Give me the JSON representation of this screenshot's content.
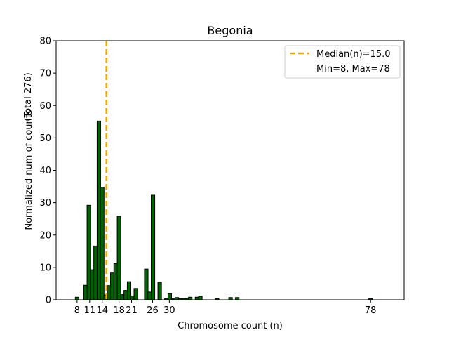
{
  "chart_data": {
    "type": "bar",
    "title": "Begonia",
    "xlabel": "Chromosome count (n)",
    "ylabel": "Normalized num of counts",
    "ylabel_secondary": "(Total 276)",
    "xlim": [
      3,
      86
    ],
    "ylim": [
      0,
      80
    ],
    "yticks": [
      0,
      10,
      20,
      30,
      40,
      50,
      60,
      70,
      80
    ],
    "xticks": [
      8,
      11,
      14,
      18,
      21,
      26,
      30,
      78
    ],
    "bar_color": "#006400",
    "bar_edge_color": "#000000",
    "bar_width": 0.85,
    "bars": [
      {
        "x": 8,
        "y": 0.8
      },
      {
        "x": 10,
        "y": 4.5
      },
      {
        "x": 10.8,
        "y": 29.2
      },
      {
        "x": 11.6,
        "y": 9.3
      },
      {
        "x": 12.4,
        "y": 16.6
      },
      {
        "x": 13.2,
        "y": 55.2
      },
      {
        "x": 14,
        "y": 34.8
      },
      {
        "x": 14.8,
        "y": 1.5
      },
      {
        "x": 15.6,
        "y": 4.4
      },
      {
        "x": 16.4,
        "y": 8.3
      },
      {
        "x": 17.2,
        "y": 11.2
      },
      {
        "x": 18,
        "y": 25.8
      },
      {
        "x": 18.8,
        "y": 1.6
      },
      {
        "x": 19.6,
        "y": 2.9
      },
      {
        "x": 20.4,
        "y": 5.6
      },
      {
        "x": 21.2,
        "y": 1.2
      },
      {
        "x": 22,
        "y": 3.5
      },
      {
        "x": 24.5,
        "y": 9.5
      },
      {
        "x": 25.3,
        "y": 2.4
      },
      {
        "x": 26.1,
        "y": 32.3
      },
      {
        "x": 27.7,
        "y": 5.4
      },
      {
        "x": 29.3,
        "y": 0.4
      },
      {
        "x": 30.1,
        "y": 1.9
      },
      {
        "x": 31,
        "y": 0.3
      },
      {
        "x": 31.8,
        "y": 0.7
      },
      {
        "x": 32.6,
        "y": 0.4
      },
      {
        "x": 33.4,
        "y": 0.4
      },
      {
        "x": 34.2,
        "y": 0.4
      },
      {
        "x": 35,
        "y": 0.8
      },
      {
        "x": 36.6,
        "y": 0.8
      },
      {
        "x": 37.4,
        "y": 1.1
      },
      {
        "x": 41.4,
        "y": 0.4
      },
      {
        "x": 44.6,
        "y": 0.7
      },
      {
        "x": 46.2,
        "y": 0.7
      },
      {
        "x": 78,
        "y": 0.4
      }
    ],
    "median_line": {
      "x": 15.0,
      "color": "#f0a500"
    },
    "legend": {
      "position": "top-right",
      "entries": [
        "Median(n)=15.0",
        "Min=8, Max=78"
      ]
    }
  }
}
